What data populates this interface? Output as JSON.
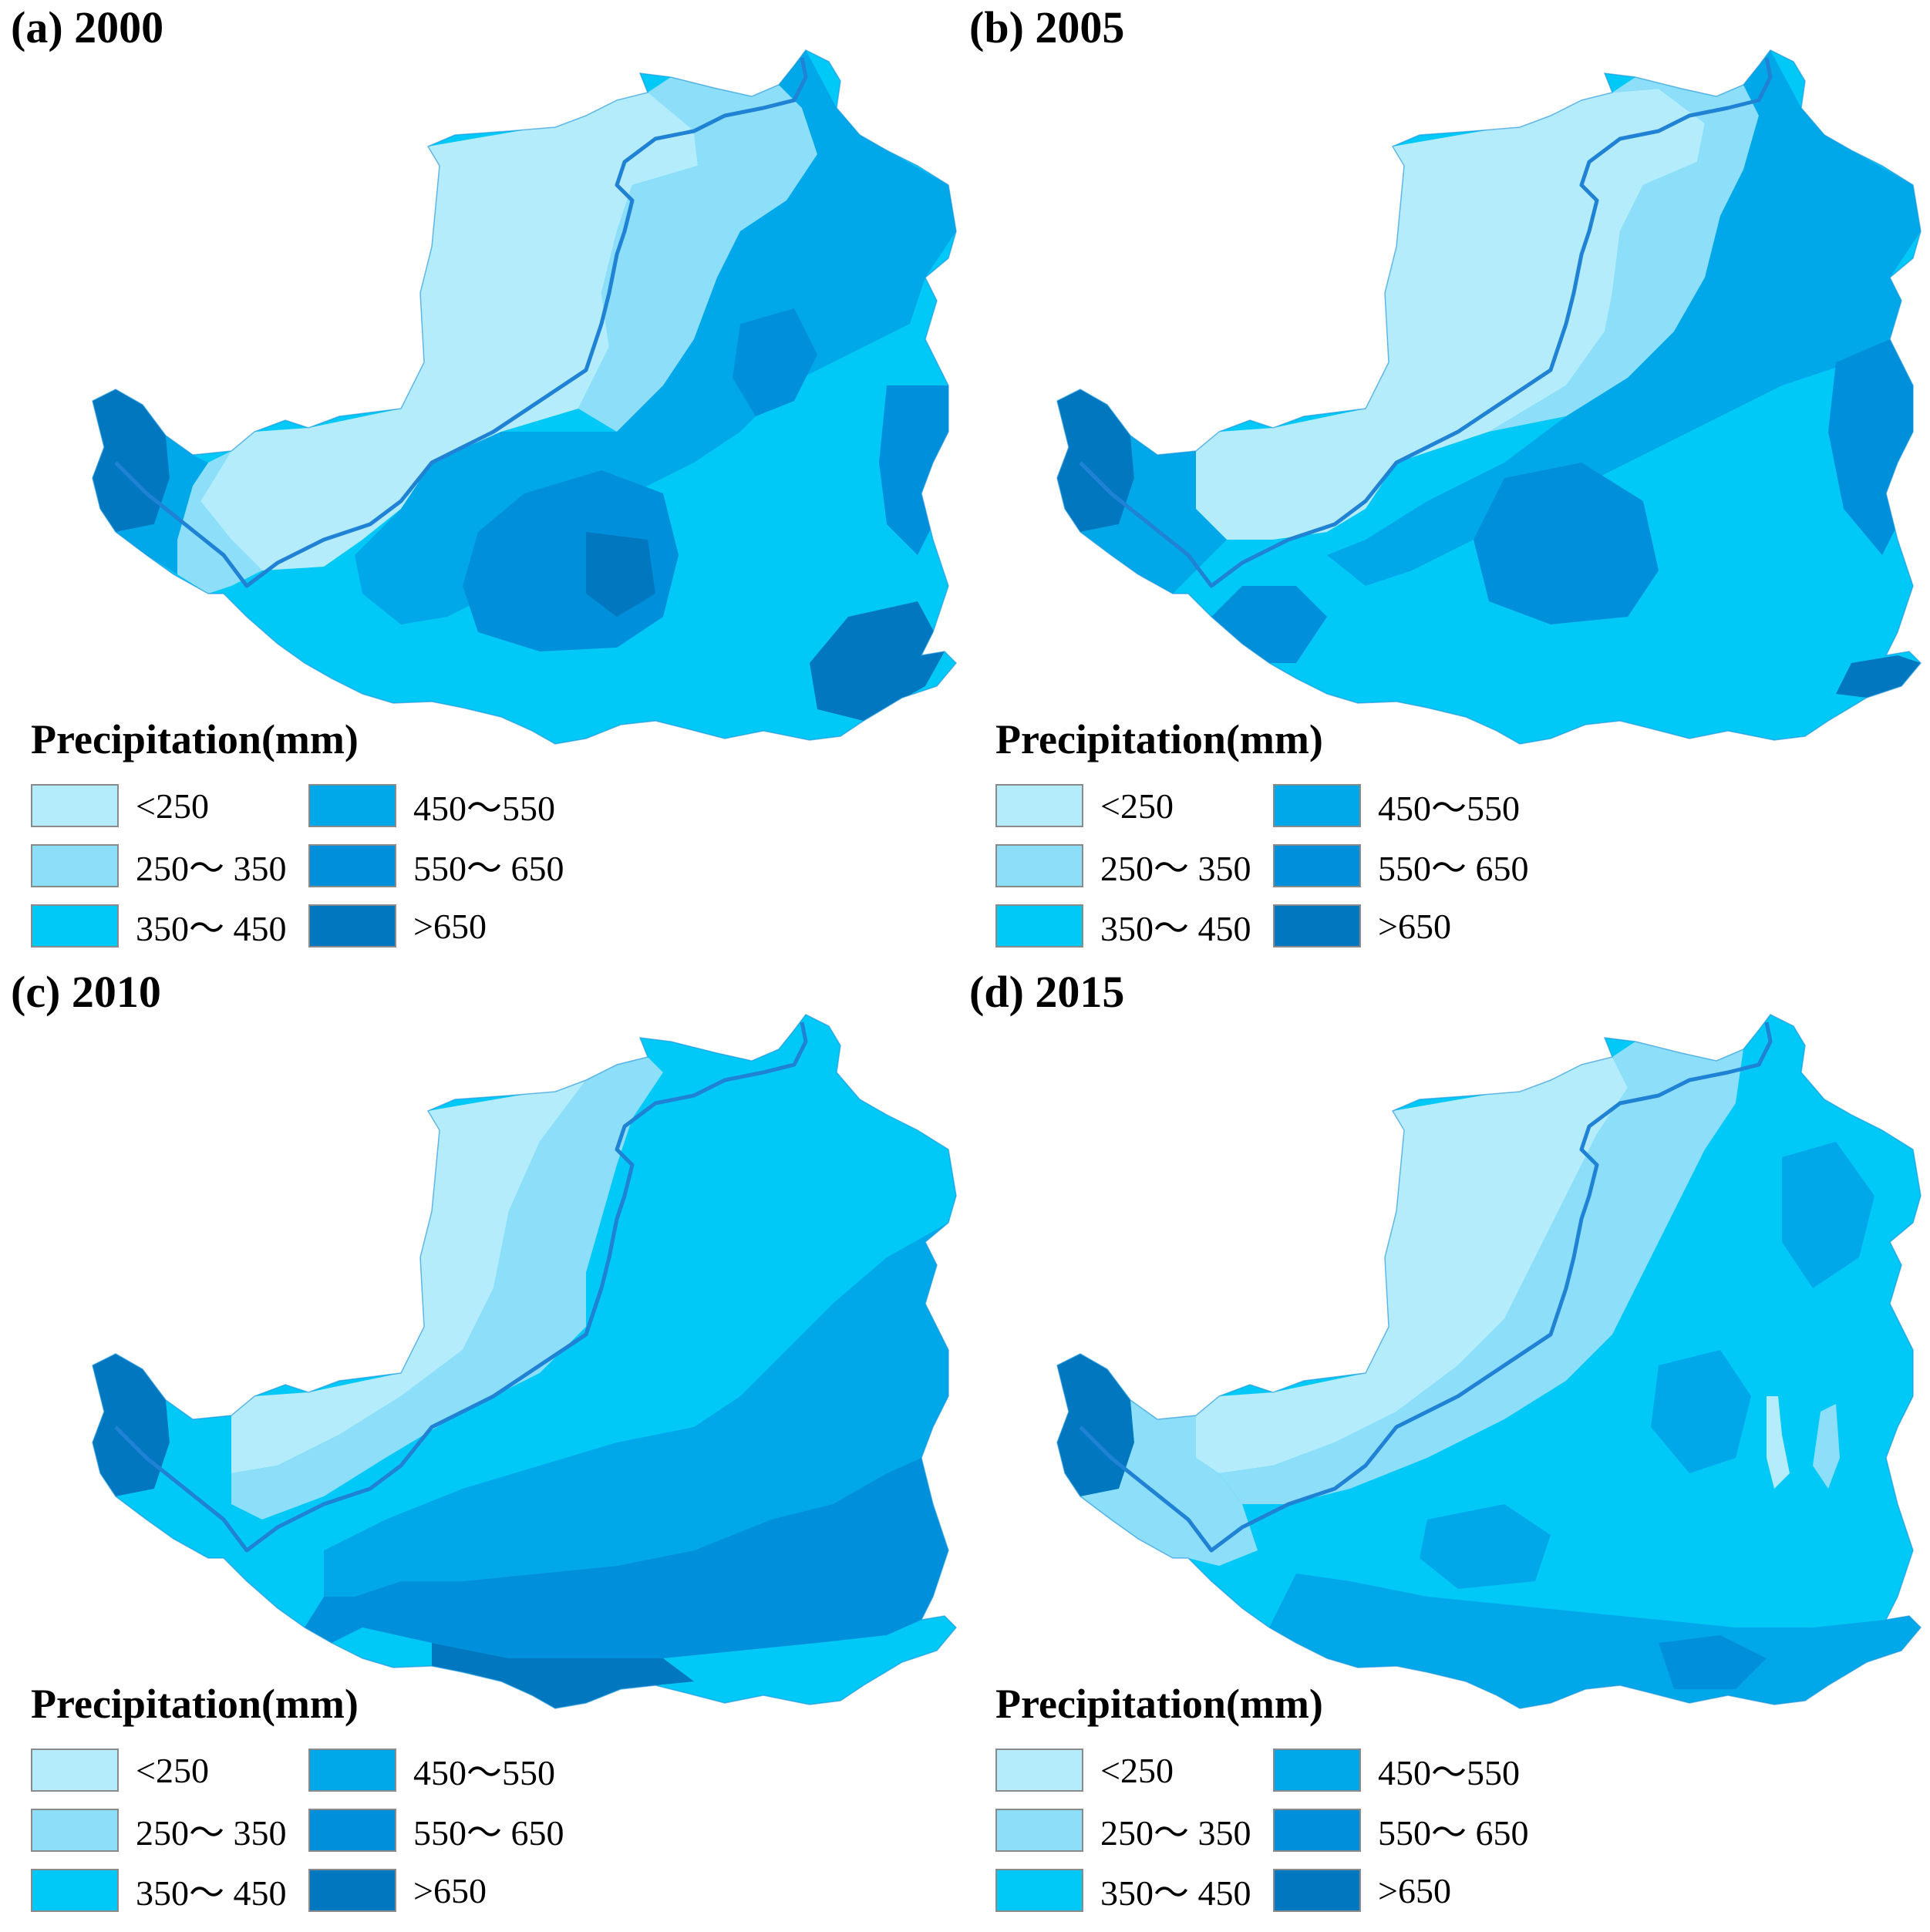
{
  "figure": {
    "panels": [
      {
        "id": "a",
        "title": "(a) 2000"
      },
      {
        "id": "b",
        "title": "(b) 2005"
      },
      {
        "id": "c",
        "title": "(c) 2010"
      },
      {
        "id": "d",
        "title": "(d) 2015"
      }
    ]
  },
  "legend": {
    "title": "Precipitation(mm)",
    "classes": [
      {
        "label": "<250",
        "color": "#b5ecfc"
      },
      {
        "label": "250～ 350",
        "color": "#8ddff9"
      },
      {
        "label": "350～ 450",
        "color": "#00c8f7"
      },
      {
        "label": "450～550",
        "color": "#00a8ea"
      },
      {
        "label": "550～ 650",
        "color": "#0090db"
      },
      {
        "label": ">650",
        "color": "#0077be"
      }
    ]
  },
  "map": {
    "river_color": "#1f82d4",
    "outline_color": "#1a8fd8"
  }
}
